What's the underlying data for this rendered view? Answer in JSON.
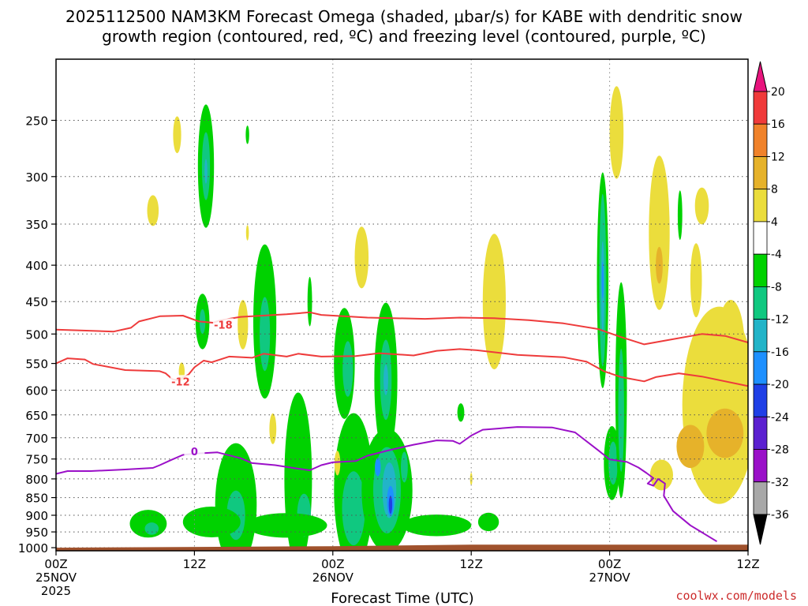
{
  "chart_data": {
    "type": "heatmap",
    "title_line1": "2025112500 NAM3KM Forecast Omega (shaded, μbar/s) for KABE with dendritic snow",
    "title_line2": "growth region (contoured, red, ºC) and freezing level (contoured, purple, ºC)",
    "xlabel": "Forecast Time (UTC)",
    "ylabel": "",
    "y_scale": "log-pressure",
    "ylim": [
      1010,
      205
    ],
    "xlim": [
      0,
      60
    ],
    "grid": true,
    "y_ticks": [
      {
        "p": 250,
        "label": "250"
      },
      {
        "p": 300,
        "label": "300"
      },
      {
        "p": 350,
        "label": "350"
      },
      {
        "p": 400,
        "label": "400"
      },
      {
        "p": 450,
        "label": "450"
      },
      {
        "p": 500,
        "label": "500"
      },
      {
        "p": 550,
        "label": "550"
      },
      {
        "p": 600,
        "label": "600"
      },
      {
        "p": 650,
        "label": "650"
      },
      {
        "p": 700,
        "label": "700"
      },
      {
        "p": 750,
        "label": "750"
      },
      {
        "p": 800,
        "label": "800"
      },
      {
        "p": 850,
        "label": "850"
      },
      {
        "p": 900,
        "label": "900"
      },
      {
        "p": 950,
        "label": "950"
      },
      {
        "p": 1000,
        "label": "1000"
      }
    ],
    "x_ticks": [
      {
        "h": 0,
        "lines": [
          "00Z",
          "25NOV",
          "2025"
        ]
      },
      {
        "h": 12,
        "lines": [
          "12Z"
        ]
      },
      {
        "h": 24,
        "lines": [
          "00Z",
          "26NOV"
        ]
      },
      {
        "h": 36,
        "lines": [
          "12Z"
        ]
      },
      {
        "h": 48,
        "lines": [
          "00Z",
          "27NOV"
        ]
      },
      {
        "h": 60,
        "lines": [
          "12Z"
        ]
      }
    ],
    "colorbar": {
      "labels": [
        "20",
        "16",
        "12",
        "8",
        "4",
        "-4",
        "-8",
        "-12",
        "-16",
        "-20",
        "-24",
        "-28",
        "-32",
        "-36"
      ],
      "colors": [
        "#e8147d",
        "#f03a3a",
        "#f0822a",
        "#e6b22a",
        "#ebdd3c",
        "#ffffff",
        "#00d200",
        "#10c880",
        "#22b4c8",
        "#1e90ff",
        "#1f3fe6",
        "#5b20d0",
        "#9a10c8",
        "#a8a8a8",
        "#000000"
      ]
    },
    "omega_features": [
      {
        "h": 13.0,
        "p": 290,
        "dh": 0.7,
        "lnp": 0.2,
        "level": 1
      },
      {
        "h": 13.0,
        "p": 290,
        "dh": 0.35,
        "lnp": 0.11,
        "level": 2
      },
      {
        "h": 13.0,
        "p": 295,
        "dh": 0.12,
        "lnp": 0.04,
        "level": 3
      },
      {
        "h": 16.6,
        "p": 262,
        "dh": 0.15,
        "lnp": 0.03,
        "level": 1
      },
      {
        "h": 10.5,
        "p": 262,
        "dh": 0.35,
        "lnp": 0.06,
        "level": -1
      },
      {
        "h": 8.4,
        "p": 335,
        "dh": 0.5,
        "lnp": 0.05,
        "level": -1
      },
      {
        "h": 16.6,
        "p": 360,
        "dh": 0.12,
        "lnp": 0.025,
        "level": -1
      },
      {
        "h": 12.7,
        "p": 480,
        "dh": 0.6,
        "lnp": 0.09,
        "level": 1
      },
      {
        "h": 12.7,
        "p": 480,
        "dh": 0.25,
        "lnp": 0.04,
        "level": 2
      },
      {
        "h": 16.2,
        "p": 485,
        "dh": 0.45,
        "lnp": 0.08,
        "level": -1
      },
      {
        "h": 18.1,
        "p": 480,
        "dh": 1.0,
        "lnp": 0.25,
        "level": 1
      },
      {
        "h": 18.1,
        "p": 500,
        "dh": 0.45,
        "lnp": 0.12,
        "level": 2
      },
      {
        "h": 22.0,
        "p": 450,
        "dh": 0.2,
        "lnp": 0.08,
        "level": 1
      },
      {
        "h": 10.9,
        "p": 565,
        "dh": 0.25,
        "lnp": 0.03,
        "level": -1
      },
      {
        "h": 25.0,
        "p": 550,
        "dh": 0.9,
        "lnp": 0.18,
        "level": 1
      },
      {
        "h": 25.3,
        "p": 560,
        "dh": 0.45,
        "lnp": 0.09,
        "level": 2
      },
      {
        "h": 28.6,
        "p": 580,
        "dh": 1.0,
        "lnp": 0.25,
        "level": 1
      },
      {
        "h": 28.6,
        "p": 580,
        "dh": 0.5,
        "lnp": 0.13,
        "level": 2
      },
      {
        "h": 28.6,
        "p": 580,
        "dh": 0.2,
        "lnp": 0.05,
        "level": 3
      },
      {
        "h": 26.5,
        "p": 390,
        "dh": 0.6,
        "lnp": 0.1,
        "level": -1
      },
      {
        "h": 38.0,
        "p": 450,
        "dh": 1.0,
        "lnp": 0.22,
        "level": -1
      },
      {
        "h": 15.6,
        "p": 870,
        "dh": 1.8,
        "lnp": 0.2,
        "level": 1
      },
      {
        "h": 15.6,
        "p": 900,
        "dh": 0.8,
        "lnp": 0.08,
        "level": 2
      },
      {
        "h": 21.0,
        "p": 800,
        "dh": 1.2,
        "lnp": 0.28,
        "level": 1
      },
      {
        "h": 21.5,
        "p": 900,
        "dh": 0.6,
        "lnp": 0.07,
        "level": 2
      },
      {
        "h": 25.8,
        "p": 830,
        "dh": 1.7,
        "lnp": 0.25,
        "level": 1
      },
      {
        "h": 25.8,
        "p": 880,
        "dh": 1.0,
        "lnp": 0.12,
        "level": 2
      },
      {
        "h": 28.7,
        "p": 830,
        "dh": 2.2,
        "lnp": 0.2,
        "level": 1
      },
      {
        "h": 28.7,
        "p": 830,
        "dh": 1.2,
        "lnp": 0.14,
        "level": 2
      },
      {
        "h": 28.9,
        "p": 830,
        "dh": 0.6,
        "lnp": 0.09,
        "level": 3
      },
      {
        "h": 29.0,
        "p": 860,
        "dh": 0.3,
        "lnp": 0.05,
        "level": 4
      },
      {
        "h": 29.0,
        "p": 870,
        "dh": 0.15,
        "lnp": 0.03,
        "level": 5
      },
      {
        "h": 27.9,
        "p": 770,
        "dh": 0.25,
        "lnp": 0.03,
        "level": 4
      },
      {
        "h": 30.2,
        "p": 770,
        "dh": 0.3,
        "lnp": 0.05,
        "level": 2
      },
      {
        "h": 13.5,
        "p": 920,
        "dh": 2.5,
        "lnp": 0.05,
        "level": 1
      },
      {
        "h": 8.0,
        "p": 925,
        "dh": 1.6,
        "lnp": 0.045,
        "level": 1
      },
      {
        "h": 8.3,
        "p": 940,
        "dh": 0.6,
        "lnp": 0.02,
        "level": 2
      },
      {
        "h": 20.0,
        "p": 930,
        "dh": 3.5,
        "lnp": 0.04,
        "level": 1
      },
      {
        "h": 33.0,
        "p": 930,
        "dh": 3.0,
        "lnp": 0.035,
        "level": 1
      },
      {
        "h": 37.5,
        "p": 920,
        "dh": 0.9,
        "lnp": 0.03,
        "level": 1
      },
      {
        "h": 18.8,
        "p": 680,
        "dh": 0.3,
        "lnp": 0.05,
        "level": -1
      },
      {
        "h": 24.4,
        "p": 760,
        "dh": 0.25,
        "lnp": 0.04,
        "level": -1
      },
      {
        "h": 36.0,
        "p": 800,
        "dh": 0.1,
        "lnp": 0.02,
        "level": -1
      },
      {
        "h": 35.1,
        "p": 645,
        "dh": 0.3,
        "lnp": 0.03,
        "level": 1
      },
      {
        "h": 48.6,
        "p": 260,
        "dh": 0.6,
        "lnp": 0.15,
        "level": -1
      },
      {
        "h": 47.4,
        "p": 420,
        "dh": 0.5,
        "lnp": 0.35,
        "level": 1
      },
      {
        "h": 47.4,
        "p": 420,
        "dh": 0.3,
        "lnp": 0.28,
        "level": 2
      },
      {
        "h": 47.4,
        "p": 430,
        "dh": 0.15,
        "lnp": 0.15,
        "level": 3
      },
      {
        "h": 47.4,
        "p": 420,
        "dh": 0.08,
        "lnp": 0.06,
        "level": 4
      },
      {
        "h": 48.2,
        "p": 760,
        "dh": 0.7,
        "lnp": 0.12,
        "level": 1
      },
      {
        "h": 48.3,
        "p": 760,
        "dh": 0.4,
        "lnp": 0.07,
        "level": 2
      },
      {
        "h": 49.0,
        "p": 600,
        "dh": 0.5,
        "lnp": 0.35,
        "level": 1
      },
      {
        "h": 49.0,
        "p": 640,
        "dh": 0.25,
        "lnp": 0.2,
        "level": 2
      },
      {
        "h": 52.3,
        "p": 360,
        "dh": 0.9,
        "lnp": 0.25,
        "level": -1
      },
      {
        "h": 52.3,
        "p": 400,
        "dh": 0.3,
        "lnp": 0.06,
        "level": -2
      },
      {
        "h": 54.1,
        "p": 340,
        "dh": 0.2,
        "lnp": 0.08,
        "level": 1
      },
      {
        "h": 56.0,
        "p": 330,
        "dh": 0.6,
        "lnp": 0.06,
        "level": -1
      },
      {
        "h": 55.5,
        "p": 420,
        "dh": 0.5,
        "lnp": 0.12,
        "level": -1
      },
      {
        "h": 57.5,
        "p": 630,
        "dh": 3.2,
        "lnp": 0.32,
        "level": -1
      },
      {
        "h": 58.5,
        "p": 520,
        "dh": 1.2,
        "lnp": 0.15,
        "level": -1
      },
      {
        "h": 55.0,
        "p": 720,
        "dh": 1.2,
        "lnp": 0.07,
        "level": -2
      },
      {
        "h": 58.0,
        "p": 690,
        "dh": 1.6,
        "lnp": 0.08,
        "level": -2
      },
      {
        "h": 52.5,
        "p": 790,
        "dh": 1.0,
        "lnp": 0.05,
        "level": -1
      }
    ],
    "surface_hPa": [
      {
        "h": 0,
        "p": 1000
      },
      {
        "h": 24,
        "p": 995
      },
      {
        "h": 36,
        "p": 990
      },
      {
        "h": 60,
        "p": 990
      }
    ],
    "dgz_contours": [
      {
        "label": "-18",
        "label_h": 14.5,
        "label_p": 485,
        "points": [
          [
            0,
            493
          ],
          [
            5,
            496
          ],
          [
            6.5,
            490
          ],
          [
            7.2,
            480
          ],
          [
            9,
            472
          ],
          [
            11,
            471
          ],
          [
            12.4,
            480
          ],
          [
            13.6,
            482
          ],
          [
            14.3,
            478
          ],
          [
            16,
            473
          ],
          [
            20,
            469
          ],
          [
            22,
            466
          ],
          [
            23,
            470
          ],
          [
            27,
            474
          ],
          [
            32,
            476
          ],
          [
            35,
            474
          ],
          [
            38,
            475
          ],
          [
            41,
            478
          ],
          [
            44,
            483
          ],
          [
            47,
            492
          ],
          [
            49,
            505
          ],
          [
            51,
            517
          ],
          [
            53,
            510
          ],
          [
            56,
            500
          ],
          [
            58,
            503
          ],
          [
            60,
            514
          ]
        ]
      },
      {
        "label": "-12",
        "label_h": 10.8,
        "label_p": 583,
        "points": [
          [
            0,
            550
          ],
          [
            1,
            541
          ],
          [
            2.5,
            543
          ],
          [
            3.2,
            551
          ],
          [
            6,
            562
          ],
          [
            9,
            564
          ],
          [
            9.5,
            568
          ],
          [
            10.1,
            579
          ],
          [
            10.6,
            581
          ],
          [
            11.5,
            570
          ],
          [
            12,
            557
          ],
          [
            12.8,
            545
          ],
          [
            13.5,
            548
          ],
          [
            15,
            538
          ],
          [
            17,
            540
          ],
          [
            18,
            533
          ],
          [
            20,
            538
          ],
          [
            21,
            533
          ],
          [
            23,
            538
          ],
          [
            26,
            537
          ],
          [
            28,
            532
          ],
          [
            31,
            536
          ],
          [
            33,
            528
          ],
          [
            35,
            525
          ],
          [
            36.5,
            527
          ],
          [
            40,
            535
          ],
          [
            44,
            539
          ],
          [
            46,
            547
          ],
          [
            47.5,
            564
          ],
          [
            49,
            575
          ],
          [
            51,
            583
          ],
          [
            52,
            575
          ],
          [
            54,
            568
          ],
          [
            56,
            574
          ],
          [
            60,
            592
          ]
        ]
      }
    ],
    "freezing_contour": {
      "label": "0",
      "label_h": 12.0,
      "label_p": 732,
      "points": [
        [
          0,
          787
        ],
        [
          1,
          780
        ],
        [
          3,
          780
        ],
        [
          6,
          776
        ],
        [
          8.4,
          772
        ],
        [
          9,
          765
        ],
        [
          10,
          752
        ],
        [
          11,
          740
        ],
        [
          12,
          737
        ],
        [
          14,
          734
        ],
        [
          16,
          748
        ],
        [
          17,
          760
        ],
        [
          19,
          765
        ],
        [
          21,
          774
        ],
        [
          22,
          778
        ],
        [
          23,
          765
        ],
        [
          24,
          758
        ],
        [
          26,
          755
        ],
        [
          27,
          742
        ],
        [
          29,
          728
        ],
        [
          31,
          716
        ],
        [
          33,
          706
        ],
        [
          34.4,
          707
        ],
        [
          35,
          714
        ],
        [
          36,
          695
        ],
        [
          37,
          682
        ],
        [
          39,
          678
        ],
        [
          40,
          676
        ],
        [
          43,
          677
        ],
        [
          45,
          688
        ],
        [
          47,
          729
        ],
        [
          48,
          751
        ],
        [
          49.5,
          757
        ],
        [
          50.5,
          771
        ],
        [
          51.2,
          785
        ],
        [
          51.8,
          798
        ],
        [
          51.3,
          812
        ],
        [
          51.8,
          818
        ],
        [
          52.2,
          800
        ],
        [
          52.8,
          812
        ],
        [
          52.7,
          845
        ],
        [
          53.5,
          888
        ],
        [
          55,
          930
        ],
        [
          57.3,
          980
        ]
      ]
    }
  },
  "credit": "coolwx.com/models"
}
